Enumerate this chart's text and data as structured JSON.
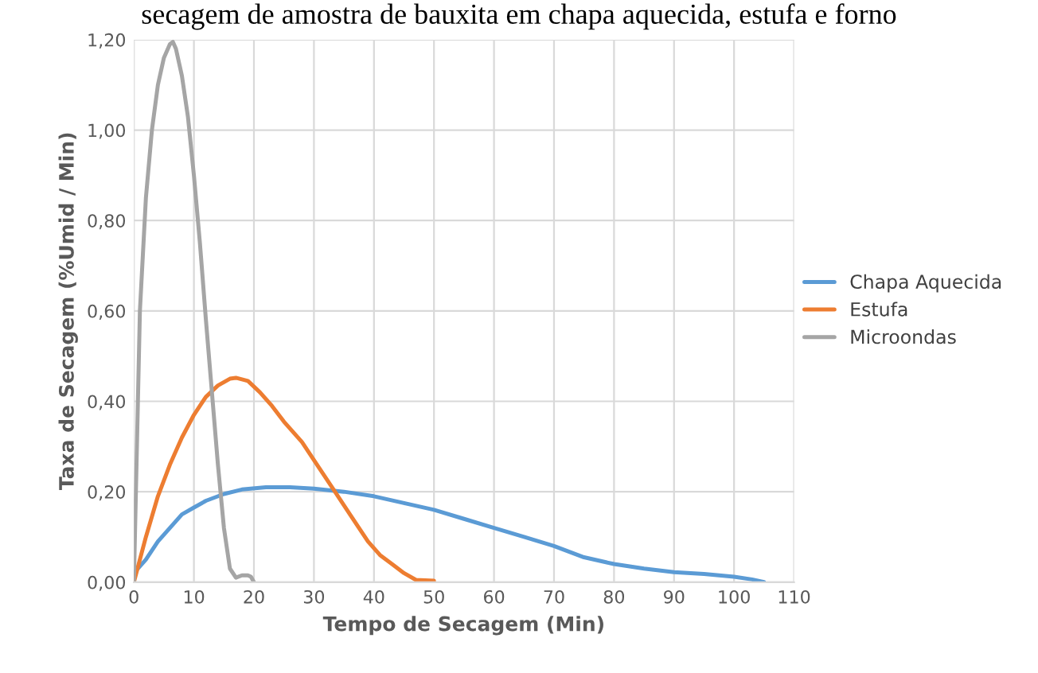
{
  "chart_data": {
    "type": "line",
    "title": "secagem de amostra de bauxita em chapa aquecida, estufa e forno",
    "xlabel": "Tempo de Secagem (Min)",
    "ylabel": "Taxa de Secagem (%Umid / Min)",
    "xlim": [
      0,
      110
    ],
    "xticks": [
      0,
      10,
      20,
      30,
      40,
      50,
      60,
      70,
      80,
      90,
      100,
      110
    ],
    "ylim": [
      0,
      1.2
    ],
    "yticks": [
      {
        "value": 0,
        "label": "0,00"
      },
      {
        "value": 0.2,
        "label": "0,20"
      },
      {
        "value": 0.4,
        "label": "0,40"
      },
      {
        "value": 0.6,
        "label": "0,60"
      },
      {
        "value": 0.8,
        "label": "0,80"
      },
      {
        "value": 1.0,
        "label": "1,00"
      },
      {
        "value": 1.2,
        "label": "1,20"
      }
    ],
    "grid": true,
    "legend": "right",
    "marker": "none",
    "line_style": "solid",
    "series": [
      {
        "name": "Chapa Aquecida",
        "color": "#5b9bd5",
        "x": [
          0,
          2,
          4,
          6,
          8,
          10,
          12,
          15,
          18,
          22,
          26,
          30,
          35,
          40,
          45,
          50,
          55,
          60,
          65,
          70,
          75,
          80,
          85,
          90,
          95,
          100,
          103,
          105
        ],
        "values": [
          0.02,
          0.05,
          0.09,
          0.12,
          0.15,
          0.165,
          0.18,
          0.195,
          0.205,
          0.21,
          0.21,
          0.207,
          0.2,
          0.19,
          0.175,
          0.16,
          0.14,
          0.12,
          0.1,
          0.08,
          0.055,
          0.04,
          0.03,
          0.022,
          0.018,
          0.012,
          0.006,
          0.0
        ]
      },
      {
        "name": "Estufa",
        "color": "#ed7d31",
        "x": [
          0,
          2,
          4,
          6,
          8,
          10,
          12,
          14,
          16,
          17,
          19,
          21,
          23,
          25,
          28,
          30,
          33,
          36,
          39,
          41,
          43,
          45,
          47,
          50
        ],
        "values": [
          0,
          0.1,
          0.19,
          0.26,
          0.32,
          0.37,
          0.41,
          0.435,
          0.45,
          0.452,
          0.445,
          0.42,
          0.39,
          0.355,
          0.31,
          0.27,
          0.21,
          0.15,
          0.09,
          0.06,
          0.04,
          0.02,
          0.005,
          0.003
        ]
      },
      {
        "name": "Microondas",
        "color": "#a5a5a5",
        "x": [
          0,
          0.5,
          1,
          2,
          3,
          4,
          5,
          6,
          6.5,
          7,
          8,
          9,
          10,
          11,
          12,
          13,
          14,
          15,
          16,
          17,
          18,
          19,
          19.5,
          20
        ],
        "values": [
          0,
          0.3,
          0.6,
          0.85,
          1.0,
          1.1,
          1.16,
          1.19,
          1.195,
          1.18,
          1.12,
          1.03,
          0.9,
          0.75,
          0.58,
          0.42,
          0.26,
          0.12,
          0.03,
          0.01,
          0.015,
          0.015,
          0.012,
          0.0
        ]
      }
    ]
  }
}
